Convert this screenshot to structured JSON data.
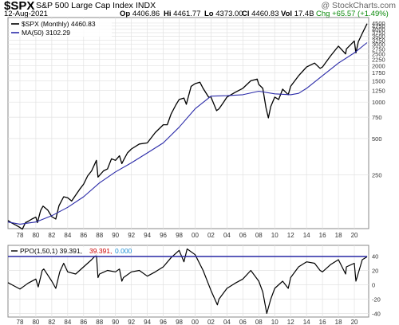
{
  "header": {
    "symbol": "$SPX",
    "name": "S&P 500 Large Cap Index",
    "exchange": "INDX",
    "watermark": "@ StockCharts.com",
    "date": "12-Aug-2021",
    "quote": [
      {
        "label": "Op",
        "value": "4406.86"
      },
      {
        "label": "Hi",
        "value": "4461.77"
      },
      {
        "label": "Lo",
        "value": "4373.00"
      },
      {
        "label": "Cl",
        "value": "4460.83"
      },
      {
        "label": "Vol",
        "value": "17.4B"
      }
    ],
    "change": "Chg +65.57 (+1.49%)",
    "change_color": "#0a8a0a"
  },
  "chart_data": [
    {
      "type": "line",
      "scale": "log",
      "ylim": [
        90,
        5000
      ],
      "x_ticks": [
        "78",
        "80",
        "82",
        "84",
        "86",
        "88",
        "90",
        "92",
        "94",
        "96",
        "98",
        "00",
        "02",
        "04",
        "06",
        "08",
        "10",
        "12",
        "14",
        "16",
        "18",
        "20"
      ],
      "y_ticks": [
        "4500",
        "4250",
        "4000",
        "3750",
        "3500",
        "3250",
        "3000",
        "2750",
        "2500",
        "2250",
        "2000",
        "1750",
        "1500",
        "1250",
        "1000",
        "750",
        "500",
        "250"
      ],
      "legend": [
        {
          "swatch_color": "#000000",
          "text": "$SPX (Monthly) 4460.83"
        },
        {
          "swatch_color": "#2a2aa8",
          "text": "MA(50) 3102.29"
        }
      ],
      "grid": true,
      "series": [
        {
          "color": "#000000",
          "x": [
            1976.5,
            1977,
            1977.5,
            1978,
            1978.3,
            1978.7,
            1979,
            1979.5,
            1980,
            1980.2,
            1980.6,
            1980.9,
            1981.5,
            1982,
            1982.5,
            1982.9,
            1983.5,
            1984,
            1984.5,
            1985,
            1985.5,
            1986,
            1986.5,
            1987,
            1987.6,
            1987.8,
            1988.5,
            1989,
            1989.5,
            1990,
            1990.5,
            1990.8,
            1991,
            1991.5,
            1992,
            1993,
            1994,
            1995,
            1996,
            1996.5,
            1997,
            1997.6,
            1998,
            1998.6,
            1998.9,
            1999.5,
            2000,
            2000.6,
            2001,
            2001.7,
            2002,
            2002.7,
            2003,
            2003.5,
            2004,
            2005,
            2006,
            2007,
            2007.8,
            2008,
            2008.5,
            2008.9,
            2009.2,
            2009.5,
            2010,
            2010.5,
            2011,
            2011.7,
            2012,
            2013,
            2014,
            2015,
            2015.7,
            2016,
            2017,
            2018,
            2018.9,
            2019,
            2020,
            2020.2,
            2020.5,
            2021,
            2021.6
          ],
          "y": [
            105,
            100,
            96,
            92,
            89,
            101,
            103,
            108,
            112,
            101,
            127,
            138,
            128,
            113,
            108,
            139,
            165,
            162,
            152,
            170,
            190,
            210,
            245,
            270,
            330,
            240,
            270,
            280,
            340,
            330,
            360,
            310,
            330,
            380,
            410,
            450,
            460,
            560,
            650,
            650,
            800,
            950,
            1050,
            1080,
            960,
            1350,
            1420,
            1460,
            1300,
            1100,
            1100,
            850,
            880,
            980,
            1100,
            1200,
            1300,
            1500,
            1550,
            1400,
            1300,
            900,
            740,
            920,
            1100,
            1050,
            1280,
            1150,
            1350,
            1650,
            1950,
            2100,
            1900,
            1950,
            2400,
            2900,
            2500,
            2750,
            3200,
            2550,
            3150,
            3700,
            4450
          ]
        },
        {
          "name": "MA(50)",
          "color": "#2a2aa8",
          "x": [
            1976.5,
            1978,
            1980,
            1982,
            1984,
            1986,
            1988,
            1990,
            1992,
            1994,
            1996,
            1998,
            2000,
            2002,
            2004,
            2006,
            2008,
            2010,
            2012,
            2013,
            2014,
            2016,
            2018,
            2020,
            2021.6
          ],
          "y": [
            102,
            98,
            102,
            115,
            135,
            165,
            215,
            265,
            315,
            380,
            460,
            620,
            880,
            1120,
            1130,
            1150,
            1230,
            1170,
            1150,
            1180,
            1300,
            1650,
            2100,
            2550,
            3100
          ]
        }
      ]
    },
    {
      "type": "line",
      "ylim": [
        -45,
        55
      ],
      "x_ticks": [
        "78",
        "80",
        "82",
        "84",
        "86",
        "88",
        "90",
        "92",
        "94",
        "96",
        "98",
        "00",
        "02",
        "04",
        "06",
        "08",
        "10",
        "12",
        "14",
        "16",
        "18",
        "20"
      ],
      "y_ticks": [
        "40",
        "20",
        "0",
        "-20",
        "-40"
      ],
      "legend_label": "PPO(1,50,1) 39.391,",
      "legend_value_red": "39.391,",
      "legend_value_blue": "0.000",
      "signal_level": 39.391,
      "series": [
        {
          "color": "#000000",
          "x": [
            1976.5,
            1977,
            1978,
            1978.5,
            1979,
            1980,
            1980.3,
            1980.8,
            1981,
            1982,
            1982.5,
            1983,
            1983.5,
            1984,
            1985,
            1986,
            1987,
            1987.6,
            1987.8,
            1988,
            1989,
            1990,
            1990.5,
            1990.8,
            1991,
            1992,
            1993,
            1994,
            1995,
            1996,
            1997,
            1998,
            1998.6,
            1999,
            2000,
            2001,
            2002,
            2002.8,
            2003,
            2004,
            2005,
            2006,
            2007,
            2008,
            2008.5,
            2009,
            2009.5,
            2010,
            2011,
            2011.7,
            2012,
            2013,
            2014,
            2015,
            2015.7,
            2016,
            2017,
            2018,
            2018.9,
            2019,
            2020,
            2020.2,
            2020.6,
            2021,
            2021.6
          ],
          "y": [
            3,
            0,
            -6,
            -2,
            2,
            8,
            -3,
            20,
            22,
            5,
            -5,
            18,
            30,
            18,
            15,
            25,
            35,
            42,
            10,
            15,
            20,
            18,
            22,
            5,
            10,
            18,
            20,
            12,
            18,
            25,
            38,
            48,
            32,
            50,
            42,
            20,
            -8,
            -28,
            -20,
            -5,
            2,
            8,
            20,
            5,
            -10,
            -40,
            -20,
            -5,
            5,
            -5,
            10,
            25,
            32,
            30,
            20,
            18,
            28,
            35,
            15,
            25,
            30,
            5,
            20,
            35,
            39
          ]
        },
        {
          "color": "#2a2aa8",
          "x": [
            1976.5,
            2021.6
          ],
          "y": [
            39.391,
            39.391
          ]
        }
      ]
    }
  ]
}
